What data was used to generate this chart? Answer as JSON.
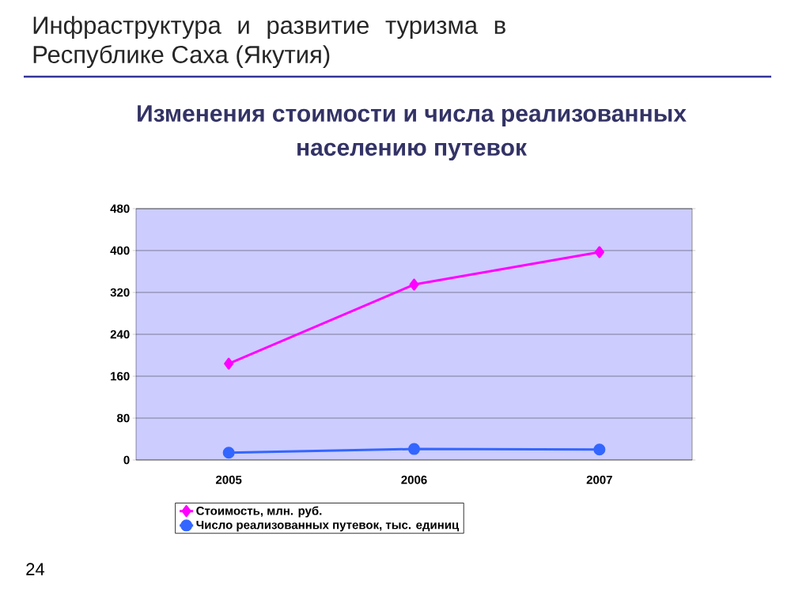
{
  "chart_data": {
    "type": "line",
    "title": "Инфраструктура и развитие туризма в Республике Саха (Якутия)",
    "subtitle": "Изменения стоимости и числа реализованных населению путевок",
    "categories": [
      "2005",
      "2006",
      "2007"
    ],
    "series": [
      {
        "name": "Стоимость, млн. руб.",
        "color": "#ff00ff",
        "marker": "diamond",
        "values": [
          184,
          335,
          397
        ]
      },
      {
        "name": "Число реализованных путевок, тыс. единиц",
        "color": "#3366ff",
        "marker": "circle",
        "values": [
          14,
          21,
          20
        ]
      }
    ],
    "ylim": [
      0,
      480
    ],
    "yticks": [
      0,
      80,
      160,
      240,
      320,
      400,
      480
    ],
    "grid": "y",
    "legend": "bottom",
    "line_style": "solid",
    "annotations": [
      "24"
    ]
  }
}
